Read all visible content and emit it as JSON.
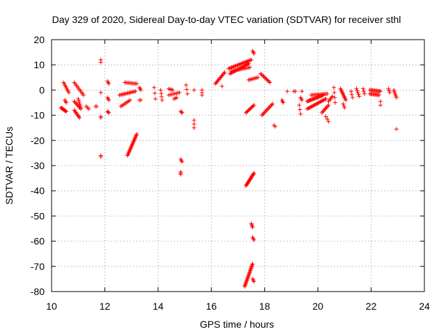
{
  "chart_data": {
    "type": "scatter",
    "title": "Day 329 of 2020, Sidereal Day-to-day VTEC variation (SDTVAR) for receiver sthl",
    "xlabel": "GPS time / hours",
    "ylabel": "SDTVAR / TECUs",
    "xlim": [
      10,
      24
    ],
    "ylim": [
      -80,
      20
    ],
    "xticks": [
      10,
      12,
      14,
      16,
      18,
      20,
      22,
      24
    ],
    "yticks": [
      20,
      10,
      0,
      -10,
      -20,
      -30,
      -40,
      -50,
      -60,
      -70,
      -80
    ],
    "xtick_labels": [
      "10",
      "12",
      "14",
      "16",
      "18",
      "20",
      "22",
      "24"
    ],
    "ytick_labels": [
      "20",
      "10",
      "0",
      "-10",
      "-20",
      "-30",
      "-40",
      "-50",
      "-60",
      "-70",
      "-80"
    ],
    "grid": true,
    "marker": "+",
    "color": "#ff0000",
    "series": [
      {
        "name": "SDTVAR",
        "tracks": [
          {
            "x0": 10.35,
            "y0": -7.0,
            "x1": 10.55,
            "y1": -8.5,
            "n": 10
          },
          {
            "x0": 10.45,
            "y0": 3.0,
            "x1": 10.65,
            "y1": -1.0,
            "n": 8
          },
          {
            "x0": 10.5,
            "y0": -4.0,
            "x1": 10.55,
            "y1": -5.0,
            "n": 3
          },
          {
            "x0": 10.85,
            "y0": 3.0,
            "x1": 11.2,
            "y1": -2.0,
            "n": 10
          },
          {
            "x0": 10.85,
            "y0": -4.5,
            "x1": 11.1,
            "y1": -7.5,
            "n": 8
          },
          {
            "x0": 10.85,
            "y0": -8.0,
            "x1": 11.05,
            "y1": -11.0,
            "n": 8
          },
          {
            "x0": 11.0,
            "y0": -3.5,
            "x1": 11.1,
            "y1": -7.0,
            "n": 6
          },
          {
            "x0": 11.3,
            "y0": -6.5,
            "x1": 11.4,
            "y1": -7.5,
            "n": 3
          },
          {
            "x0": 11.65,
            "y0": -6.5,
            "x1": 11.7,
            "y1": -6.5,
            "n": 2
          },
          {
            "x0": 11.85,
            "y0": 12.0,
            "x1": 11.85,
            "y1": 11.0,
            "n": 2
          },
          {
            "x0": 11.85,
            "y0": -1.0,
            "x1": 11.85,
            "y1": -1.0,
            "n": 1
          },
          {
            "x0": 11.85,
            "y0": -10.5,
            "x1": 11.85,
            "y1": -11.0,
            "n": 2
          },
          {
            "x0": 11.85,
            "y0": -26.0,
            "x1": 11.85,
            "y1": -26.5,
            "n": 2
          },
          {
            "x0": 12.1,
            "y0": 3.5,
            "x1": 12.15,
            "y1": 2.5,
            "n": 3
          },
          {
            "x0": 12.1,
            "y0": -3.0,
            "x1": 12.15,
            "y1": -4.0,
            "n": 3
          },
          {
            "x0": 12.1,
            "y0": -8.5,
            "x1": 12.15,
            "y1": -9.0,
            "n": 3
          },
          {
            "x0": 12.55,
            "y0": -2.0,
            "x1": 13.15,
            "y1": -0.5,
            "n": 14
          },
          {
            "x0": 12.6,
            "y0": -6.5,
            "x1": 12.95,
            "y1": -4.0,
            "n": 8
          },
          {
            "x0": 12.75,
            "y0": 3.0,
            "x1": 13.2,
            "y1": 2.5,
            "n": 10
          },
          {
            "x0": 12.85,
            "y0": -26.0,
            "x1": 13.2,
            "y1": -17.5,
            "n": 20
          },
          {
            "x0": 13.3,
            "y0": 1.0,
            "x1": 13.35,
            "y1": 0.0,
            "n": 3
          },
          {
            "x0": 13.3,
            "y0": -4.0,
            "x1": 13.35,
            "y1": -4.0,
            "n": 2
          },
          {
            "x0": 13.85,
            "y0": 1.0,
            "x1": 13.9,
            "y1": -3.5,
            "n": 3
          },
          {
            "x0": 14.1,
            "y0": 0.0,
            "x1": 14.15,
            "y1": -4.0,
            "n": 4
          },
          {
            "x0": 14.4,
            "y0": 0.5,
            "x1": 14.55,
            "y1": 0.0,
            "n": 4
          },
          {
            "x0": 14.4,
            "y0": -2.0,
            "x1": 14.8,
            "y1": -1.0,
            "n": 8
          },
          {
            "x0": 14.6,
            "y0": -3.5,
            "x1": 14.7,
            "y1": -3.0,
            "n": 3
          },
          {
            "x0": 14.85,
            "y0": -8.5,
            "x1": 14.9,
            "y1": -9.0,
            "n": 3
          },
          {
            "x0": 14.85,
            "y0": -27.5,
            "x1": 14.9,
            "y1": -28.5,
            "n": 3
          },
          {
            "x0": 14.85,
            "y0": -32.5,
            "x1": 14.85,
            "y1": -33.5,
            "n": 3
          },
          {
            "x0": 15.05,
            "y0": 2.0,
            "x1": 15.1,
            "y1": -1.5,
            "n": 3
          },
          {
            "x0": 15.35,
            "y0": -12.0,
            "x1": 15.35,
            "y1": -15.0,
            "n": 3
          },
          {
            "x0": 15.35,
            "y0": 0.0,
            "x1": 15.35,
            "y1": 0.0,
            "n": 1
          },
          {
            "x0": 15.65,
            "y0": 0.0,
            "x1": 15.65,
            "y1": -2.0,
            "n": 3
          },
          {
            "x0": 16.15,
            "y0": 2.5,
            "x1": 16.5,
            "y1": 7.0,
            "n": 12
          },
          {
            "x0": 16.4,
            "y0": 1.5,
            "x1": 16.4,
            "y1": 1.5,
            "n": 1
          },
          {
            "x0": 16.65,
            "y0": 8.5,
            "x1": 17.5,
            "y1": 12.0,
            "n": 22
          },
          {
            "x0": 16.7,
            "y0": 6.5,
            "x1": 17.4,
            "y1": 10.5,
            "n": 20
          },
          {
            "x0": 16.75,
            "y0": 7.5,
            "x1": 17.45,
            "y1": 9.0,
            "n": 14
          },
          {
            "x0": 17.3,
            "y0": -9.0,
            "x1": 17.6,
            "y1": -6.0,
            "n": 10
          },
          {
            "x0": 17.4,
            "y0": 4.0,
            "x1": 17.75,
            "y1": 5.0,
            "n": 8
          },
          {
            "x0": 17.55,
            "y0": 15.5,
            "x1": 17.6,
            "y1": 14.5,
            "n": 3
          },
          {
            "x0": 17.3,
            "y0": -38.0,
            "x1": 17.6,
            "y1": -33.0,
            "n": 16
          },
          {
            "x0": 17.5,
            "y0": -53.0,
            "x1": 17.55,
            "y1": -54.5,
            "n": 4
          },
          {
            "x0": 17.55,
            "y0": -58.5,
            "x1": 17.6,
            "y1": -59.5,
            "n": 3
          },
          {
            "x0": 17.25,
            "y0": -78.0,
            "x1": 17.55,
            "y1": -69.0,
            "n": 22
          },
          {
            "x0": 17.55,
            "y0": -75.0,
            "x1": 17.6,
            "y1": -76.0,
            "n": 3
          },
          {
            "x0": 17.85,
            "y0": 6.5,
            "x1": 18.2,
            "y1": 3.0,
            "n": 10
          },
          {
            "x0": 17.9,
            "y0": -10.0,
            "x1": 18.3,
            "y1": -5.5,
            "n": 12
          },
          {
            "x0": 18.35,
            "y0": -14.0,
            "x1": 18.4,
            "y1": -14.5,
            "n": 2
          },
          {
            "x0": 18.65,
            "y0": -4.0,
            "x1": 18.7,
            "y1": -5.0,
            "n": 3
          },
          {
            "x0": 18.85,
            "y0": -0.5,
            "x1": 18.85,
            "y1": -0.5,
            "n": 1
          },
          {
            "x0": 19.1,
            "y0": -0.5,
            "x1": 19.15,
            "y1": -0.5,
            "n": 2
          },
          {
            "x0": 19.3,
            "y0": -6.0,
            "x1": 19.35,
            "y1": -9.5,
            "n": 3
          },
          {
            "x0": 19.35,
            "y0": -3.0,
            "x1": 19.4,
            "y1": -4.0,
            "n": 3
          },
          {
            "x0": 19.4,
            "y0": -0.5,
            "x1": 19.4,
            "y1": -0.5,
            "n": 1
          },
          {
            "x0": 19.6,
            "y0": -4.5,
            "x1": 20.2,
            "y1": -2.0,
            "n": 20
          },
          {
            "x0": 19.6,
            "y0": -7.5,
            "x1": 20.3,
            "y1": -3.5,
            "n": 20
          },
          {
            "x0": 19.75,
            "y0": -2.0,
            "x1": 20.35,
            "y1": -1.5,
            "n": 14
          },
          {
            "x0": 20.15,
            "y0": -9.0,
            "x1": 20.4,
            "y1": -6.0,
            "n": 8
          },
          {
            "x0": 20.3,
            "y0": -10.5,
            "x1": 20.4,
            "y1": -12.5,
            "n": 3
          },
          {
            "x0": 20.4,
            "y0": -4.5,
            "x1": 20.55,
            "y1": -2.5,
            "n": 5
          },
          {
            "x0": 20.6,
            "y0": 1.0,
            "x1": 20.65,
            "y1": -5.0,
            "n": 4
          },
          {
            "x0": 20.85,
            "y0": 0.5,
            "x1": 21.05,
            "y1": -4.0,
            "n": 10
          },
          {
            "x0": 20.95,
            "y0": -5.5,
            "x1": 21.0,
            "y1": -7.0,
            "n": 3
          },
          {
            "x0": 21.25,
            "y0": -0.5,
            "x1": 21.3,
            "y1": -3.0,
            "n": 3
          },
          {
            "x0": 21.45,
            "y0": 0.5,
            "x1": 21.55,
            "y1": -2.5,
            "n": 5
          },
          {
            "x0": 21.7,
            "y0": 0.5,
            "x1": 21.75,
            "y1": -1.5,
            "n": 3
          },
          {
            "x0": 21.95,
            "y0": 0.0,
            "x1": 22.35,
            "y1": -0.5,
            "n": 12
          },
          {
            "x0": 21.95,
            "y0": -1.5,
            "x1": 22.3,
            "y1": -2.0,
            "n": 10
          },
          {
            "x0": 22.35,
            "y0": -4.5,
            "x1": 22.35,
            "y1": -6.0,
            "n": 2
          },
          {
            "x0": 22.65,
            "y0": 0.5,
            "x1": 22.7,
            "y1": -1.0,
            "n": 3
          },
          {
            "x0": 22.85,
            "y0": 0.0,
            "x1": 22.95,
            "y1": -3.0,
            "n": 6
          },
          {
            "x0": 22.95,
            "y0": -15.5,
            "x1": 22.95,
            "y1": -15.5,
            "n": 1
          }
        ]
      }
    ]
  }
}
